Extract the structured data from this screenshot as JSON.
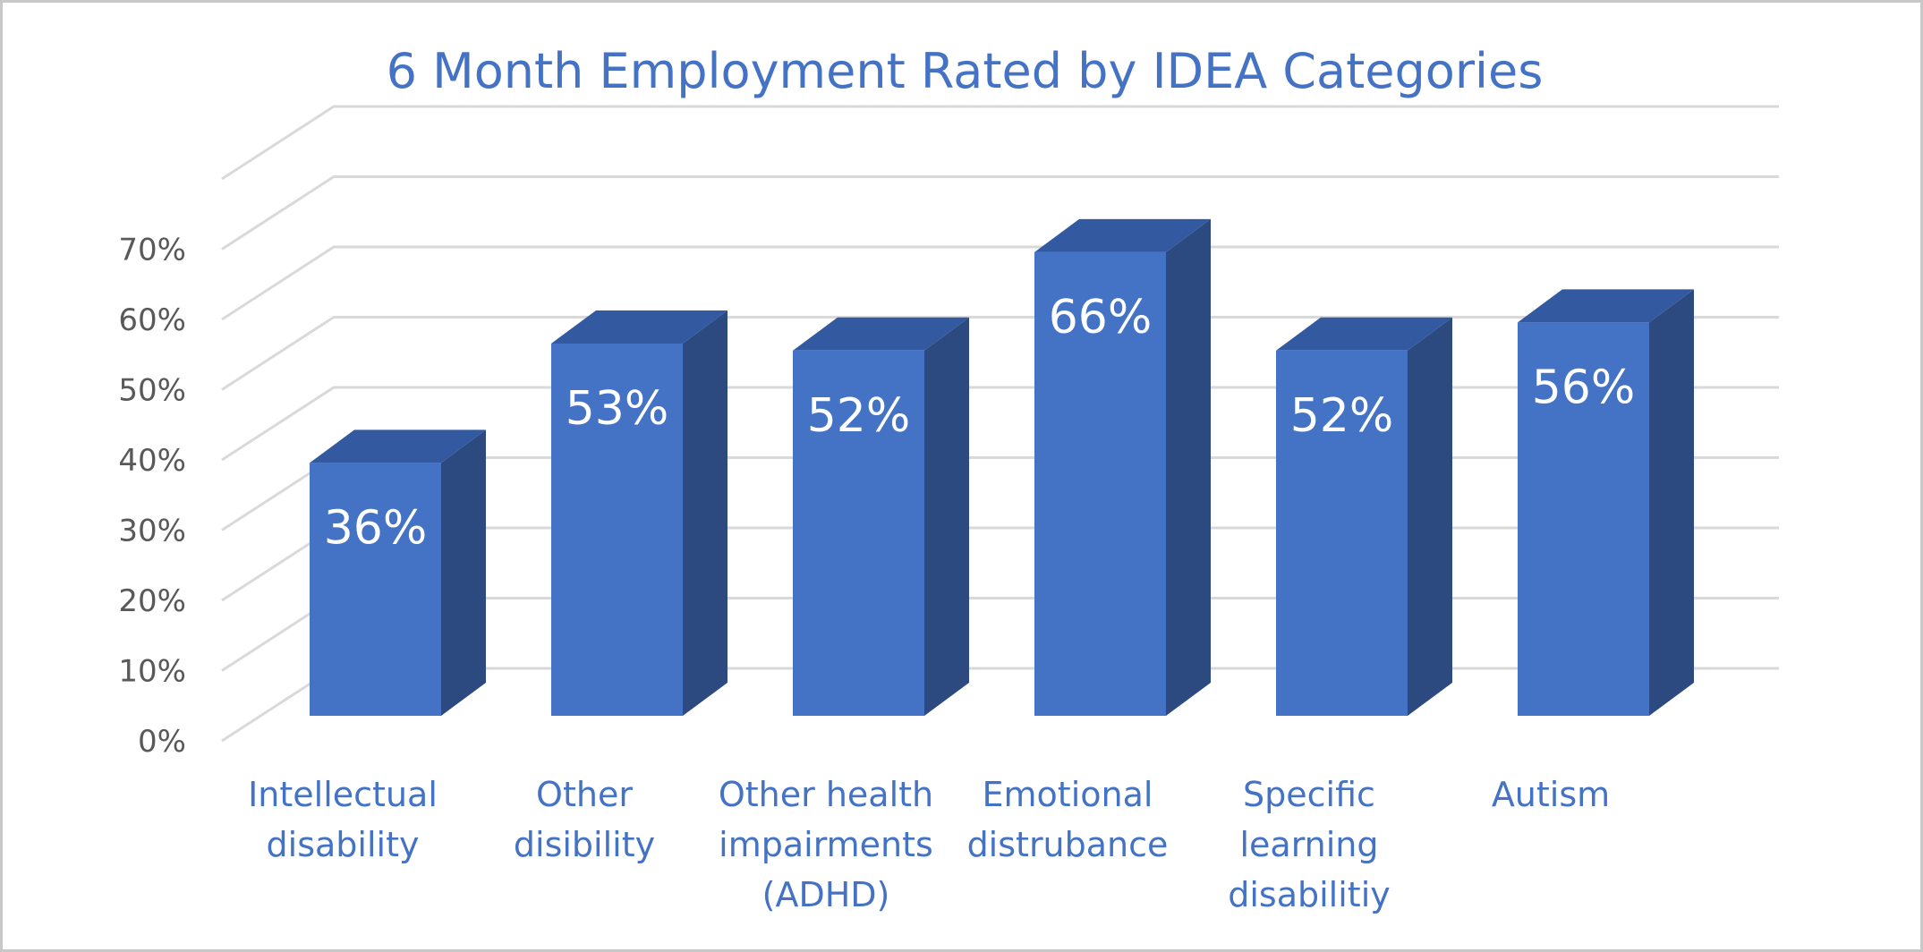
{
  "chart_data": {
    "type": "bar",
    "style": "3d-column",
    "title": "6 Month Employment Rated by IDEA Categories",
    "categories": [
      [
        "Intellectual",
        "disability"
      ],
      [
        "Other",
        "disibility"
      ],
      [
        "Other health",
        "impairments",
        "(ADHD)"
      ],
      [
        "Emotional",
        "distrubance"
      ],
      [
        "Specific",
        "learning",
        "disabilitiy"
      ],
      [
        "Autism"
      ]
    ],
    "values": [
      36,
      53,
      52,
      66,
      52,
      56
    ],
    "data_labels": [
      "36%",
      "53%",
      "52%",
      "66%",
      "52%",
      "56%"
    ],
    "y_ticks": [
      "0%",
      "10%",
      "20%",
      "30%",
      "40%",
      "50%",
      "60%",
      "70%"
    ],
    "ylim": [
      0,
      80
    ],
    "xlabel": "",
    "ylabel": "",
    "grid": true,
    "legend": "none",
    "colors": {
      "bar_front": "#4472c4",
      "bar_top": "#335aa0",
      "bar_side": "#2c4a80",
      "title": "#4472c4",
      "category_label": "#4472c4",
      "tick_label": "#595959",
      "gridline": "#d9d9d9",
      "data_label": "#ffffff"
    }
  }
}
